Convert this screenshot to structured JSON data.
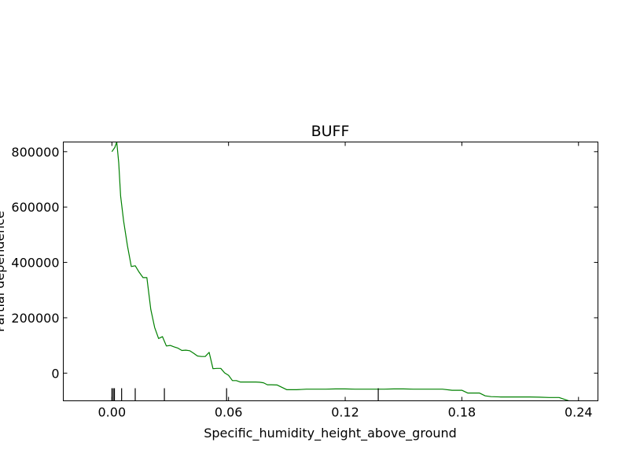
{
  "chart_data": {
    "type": "line",
    "title": "BUFF",
    "xlabel": "Specific_humidity_height_above_ground",
    "ylabel": "Partial dependence",
    "xlim": [
      -0.025,
      0.25
    ],
    "ylim": [
      -100000,
      835000
    ],
    "x_ticks": [
      0.0,
      0.06,
      0.12,
      0.18,
      0.24
    ],
    "x_tick_labels": [
      "0.00",
      "0.06",
      "0.12",
      "0.18",
      "0.24"
    ],
    "y_ticks": [
      0,
      200000,
      400000,
      600000,
      800000
    ],
    "y_tick_labels": [
      "0",
      "200000",
      "400000",
      "600000",
      "800000"
    ],
    "grid": false,
    "line_color": "#008000",
    "series": [
      {
        "x": [
          0.0,
          0.0015,
          0.0025,
          0.0035,
          0.0045,
          0.006,
          0.008,
          0.01,
          0.012,
          0.014,
          0.016,
          0.018,
          0.02,
          0.022,
          0.024,
          0.026,
          0.028,
          0.03,
          0.032,
          0.034,
          0.036,
          0.038,
          0.04,
          0.042,
          0.044,
          0.046,
          0.048,
          0.05,
          0.052,
          0.054,
          0.056,
          0.058,
          0.06,
          0.062,
          0.064,
          0.066,
          0.068,
          0.07,
          0.072,
          0.074,
          0.076,
          0.078,
          0.08,
          0.082,
          0.085,
          0.09,
          0.095,
          0.1,
          0.105,
          0.11,
          0.115,
          0.12,
          0.125,
          0.13,
          0.135,
          0.14,
          0.145,
          0.15,
          0.155,
          0.16,
          0.165,
          0.17,
          0.175,
          0.18,
          0.183,
          0.186,
          0.189,
          0.192,
          0.195,
          0.2,
          0.205,
          0.21,
          0.215,
          0.22,
          0.225,
          0.23,
          0.235,
          0.24,
          0.243
        ],
        "y": [
          800000,
          815000,
          835000,
          760000,
          640000,
          550000,
          460000,
          385000,
          388000,
          365000,
          345000,
          345000,
          230000,
          165000,
          125000,
          132000,
          98000,
          100000,
          95000,
          90000,
          82000,
          83000,
          81000,
          72000,
          62000,
          60000,
          60000,
          75000,
          16000,
          17000,
          17000,
          1000,
          -8000,
          -27000,
          -27000,
          -32000,
          -32000,
          -32000,
          -32000,
          -32000,
          -33000,
          -35000,
          -42000,
          -42000,
          -43000,
          -60000,
          -60000,
          -58000,
          -58000,
          -58000,
          -57000,
          -57000,
          -58000,
          -58000,
          -58000,
          -58000,
          -57000,
          -57000,
          -58000,
          -58000,
          -58000,
          -58000,
          -62000,
          -62000,
          -72000,
          -72000,
          -72000,
          -82000,
          -85000,
          -86000,
          -86000,
          -86000,
          -86000,
          -87000,
          -88000,
          -88000,
          -100000,
          -101000,
          -101000
        ]
      }
    ],
    "rug_x": [
      0.0,
      0.0007,
      0.0013,
      0.005,
      0.012,
      0.027,
      0.059,
      0.137
    ]
  }
}
